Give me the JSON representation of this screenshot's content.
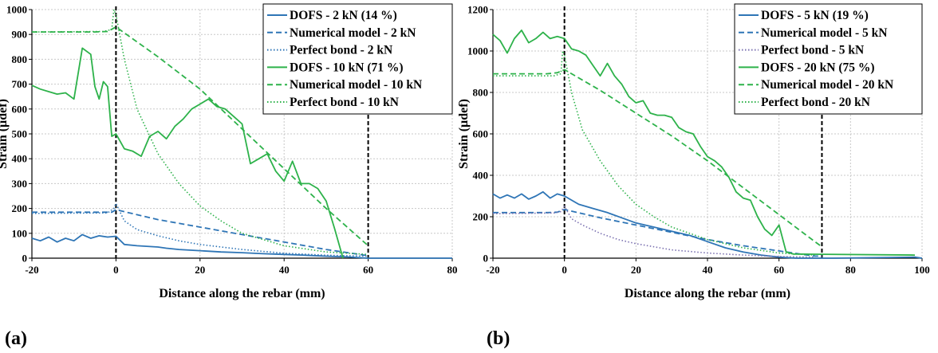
{
  "colors": {
    "blue": "#2E75B6",
    "green": "#2DB24A",
    "purple": "#7A70B0",
    "grid": "#C8C8C8",
    "axis": "#000000"
  },
  "chart_data": [
    {
      "type": "line",
      "panel_label": "(a)",
      "xlabel": "Distance along the rebar (mm)",
      "ylabel": "Strain (µdef)",
      "xlim": [
        -20,
        80
      ],
      "ylim": [
        0,
        1000
      ],
      "xticks": [
        -20,
        0,
        20,
        40,
        60,
        80
      ],
      "yticks": [
        0,
        100,
        200,
        300,
        400,
        500,
        600,
        700,
        800,
        900,
        1000
      ],
      "vertical_markers": [
        0,
        60
      ],
      "grid": true,
      "legend_position": "top-right",
      "series": [
        {
          "name": "DOFS - 2 kN (14 %)",
          "style": "solid",
          "color": "blue",
          "x": [
            -20,
            -18,
            -16,
            -14,
            -12,
            -10,
            -8,
            -6,
            -4,
            -2,
            0,
            2,
            5,
            10,
            12,
            15,
            20,
            25,
            30,
            35,
            40,
            45,
            50,
            55,
            60,
            80
          ],
          "y": [
            80,
            70,
            85,
            65,
            80,
            70,
            95,
            80,
            90,
            85,
            88,
            55,
            50,
            45,
            40,
            35,
            30,
            25,
            22,
            18,
            15,
            12,
            8,
            5,
            0,
            0
          ]
        },
        {
          "name": "Numerical model - 2 kN",
          "style": "dashed",
          "color": "blue",
          "x": [
            -20,
            -5,
            -1,
            0,
            10,
            20,
            30,
            40,
            50,
            60
          ],
          "y": [
            185,
            185,
            185,
            195,
            155,
            125,
            95,
            65,
            35,
            10
          ]
        },
        {
          "name": "Perfect bond - 2 kN",
          "style": "dotted",
          "color": "blue",
          "x": [
            -20,
            -2,
            -0.5,
            0,
            2,
            5,
            10,
            15,
            20,
            30,
            40,
            50,
            60
          ],
          "y": [
            180,
            182,
            200,
            220,
            150,
            115,
            90,
            70,
            55,
            35,
            20,
            12,
            8
          ]
        },
        {
          "name": "DOFS - 10 kN (71 %)",
          "style": "solid",
          "color": "green",
          "x": [
            -20,
            -18,
            -16,
            -14,
            -12,
            -10,
            -8,
            -6,
            -5,
            -4,
            -3,
            -2,
            -1,
            0,
            2,
            4,
            6,
            8,
            10,
            12,
            14,
            16,
            18,
            20,
            22,
            24,
            26,
            28,
            30,
            32,
            34,
            36,
            38,
            40,
            42,
            44,
            46,
            48,
            50,
            52,
            54
          ],
          "y": [
            695,
            680,
            670,
            660,
            665,
            640,
            845,
            820,
            690,
            640,
            710,
            690,
            490,
            500,
            440,
            430,
            410,
            490,
            510,
            480,
            530,
            560,
            600,
            620,
            640,
            610,
            600,
            570,
            540,
            380,
            400,
            420,
            350,
            310,
            390,
            300,
            300,
            280,
            230,
            120,
            0
          ]
        },
        {
          "name": "Numerical model - 10 kN",
          "style": "dashed",
          "color": "green",
          "x": [
            -20,
            -5,
            -2,
            0,
            10,
            20,
            30,
            40,
            50,
            60
          ],
          "y": [
            910,
            910,
            912,
            930,
            810,
            680,
            520,
            360,
            200,
            50
          ]
        },
        {
          "name": "Perfect bond - 10 kN",
          "style": "dotted",
          "color": "green",
          "x": [
            -20,
            -3,
            -1,
            -0.5,
            0,
            2,
            5,
            10,
            15,
            20,
            25,
            30,
            40,
            50,
            60
          ],
          "y": [
            910,
            912,
            920,
            1000,
            980,
            800,
            600,
            420,
            300,
            210,
            150,
            100,
            50,
            25,
            15
          ]
        }
      ]
    },
    {
      "type": "line",
      "panel_label": "(b)",
      "xlabel": "Distance along the rebar (mm)",
      "ylabel": "Strain (µdef)",
      "xlim": [
        -20,
        100
      ],
      "ylim": [
        0,
        1200
      ],
      "xticks": [
        -20,
        0,
        20,
        40,
        60,
        80,
        100
      ],
      "yticks": [
        0,
        200,
        400,
        600,
        800,
        1000,
        1200
      ],
      "vertical_markers": [
        0,
        72
      ],
      "grid": true,
      "legend_position": "top-right",
      "series": [
        {
          "name": "DOFS - 5 kN (19 %)",
          "style": "solid",
          "color": "blue",
          "x": [
            -20,
            -18,
            -16,
            -14,
            -12,
            -10,
            -8,
            -6,
            -4,
            -2,
            0,
            4,
            8,
            12,
            16,
            20,
            25,
            30,
            35,
            40,
            45,
            50,
            55,
            60,
            65,
            70,
            75,
            98,
            100
          ],
          "y": [
            310,
            290,
            305,
            290,
            310,
            285,
            300,
            320,
            290,
            310,
            300,
            260,
            240,
            220,
            195,
            170,
            150,
            130,
            110,
            80,
            50,
            30,
            15,
            5,
            0,
            0,
            0,
            5,
            0
          ]
        },
        {
          "name": "Numerical model - 5 kN",
          "style": "dashed",
          "color": "blue",
          "x": [
            -20,
            -5,
            -2,
            0,
            10,
            20,
            30,
            40,
            50,
            60,
            70,
            72
          ],
          "y": [
            220,
            220,
            222,
            235,
            195,
            160,
            125,
            90,
            60,
            35,
            10,
            10
          ]
        },
        {
          "name": "Perfect bond - 5 kN",
          "style": "dotted",
          "color": "purple",
          "x": [
            -20,
            -3,
            -1,
            0,
            2,
            5,
            10,
            15,
            20,
            25,
            30,
            40,
            50,
            60,
            70
          ],
          "y": [
            215,
            218,
            225,
            250,
            190,
            160,
            120,
            90,
            70,
            55,
            40,
            25,
            15,
            8,
            5
          ]
        },
        {
          "name": "DOFS - 20 kN (75 %)",
          "style": "solid",
          "color": "green",
          "x": [
            -20,
            -18,
            -16,
            -14,
            -12,
            -10,
            -8,
            -6,
            -4,
            -2,
            0,
            2,
            4,
            6,
            8,
            10,
            12,
            14,
            16,
            18,
            20,
            22,
            24,
            26,
            28,
            30,
            32,
            34,
            36,
            38,
            40,
            42,
            44,
            46,
            48,
            50,
            52,
            54,
            56,
            58,
            60,
            62,
            64,
            98
          ],
          "y": [
            1080,
            1050,
            990,
            1060,
            1100,
            1040,
            1060,
            1090,
            1060,
            1070,
            1060,
            1010,
            1000,
            980,
            930,
            880,
            940,
            880,
            840,
            780,
            750,
            760,
            700,
            690,
            690,
            680,
            630,
            610,
            600,
            540,
            490,
            470,
            440,
            390,
            320,
            290,
            280,
            200,
            140,
            110,
            160,
            30,
            20,
            15
          ]
        },
        {
          "name": "Numerical model - 20 kN",
          "style": "dashed",
          "color": "green",
          "x": [
            -20,
            -5,
            -2,
            0,
            10,
            20,
            30,
            40,
            50,
            60,
            70,
            72
          ],
          "y": [
            890,
            890,
            895,
            910,
            810,
            700,
            590,
            470,
            340,
            210,
            80,
            55
          ]
        },
        {
          "name": "Perfect bond - 20 kN",
          "style": "dotted",
          "color": "green",
          "x": [
            -20,
            -3,
            -1,
            -0.5,
            0,
            2,
            5,
            10,
            15,
            20,
            25,
            30,
            40,
            50,
            60,
            70
          ],
          "y": [
            880,
            880,
            890,
            1000,
            980,
            800,
            620,
            470,
            350,
            260,
            200,
            150,
            90,
            50,
            25,
            15
          ]
        }
      ]
    }
  ]
}
